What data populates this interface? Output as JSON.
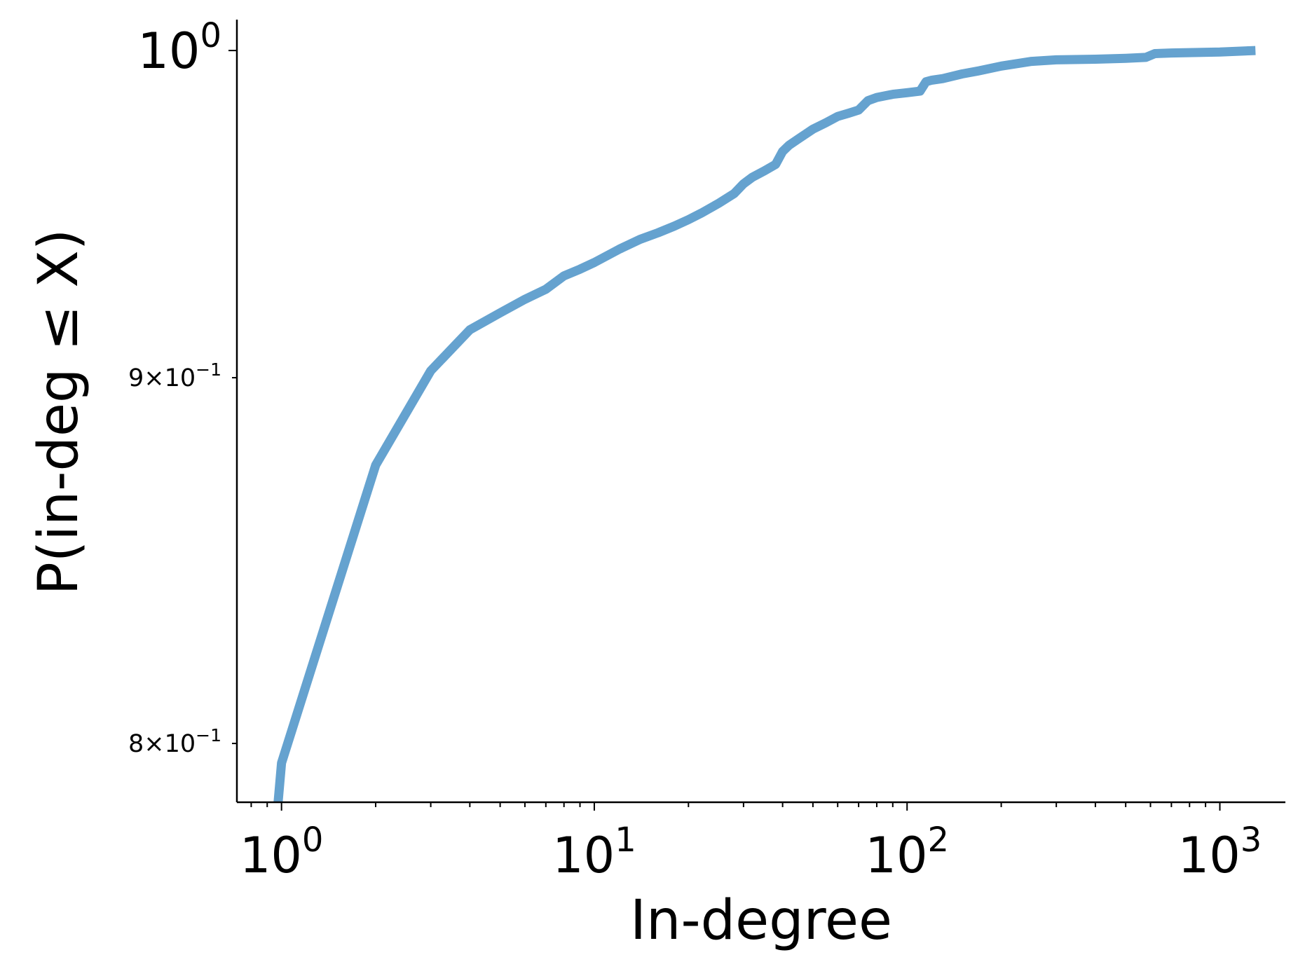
{
  "chart_data": {
    "type": "line",
    "xlabel": "In-degree",
    "ylabel": "P(in-deg ≤ X)",
    "xscale": "log",
    "yscale": "log",
    "xlim": [
      0.72,
      1620
    ],
    "ylim": [
      0.785,
      1.01
    ],
    "x_ticks": [
      {
        "value": 1,
        "base": "10",
        "exp": "0"
      },
      {
        "value": 10,
        "base": "10",
        "exp": "1"
      },
      {
        "value": 100,
        "base": "10",
        "exp": "2"
      },
      {
        "value": 1000,
        "base": "10",
        "exp": "3"
      }
    ],
    "y_ticks": [
      {
        "value": 0.8,
        "mantissa": "8",
        "base": "10",
        "exp": "−1",
        "style": "minor"
      },
      {
        "value": 0.9,
        "mantissa": "9",
        "base": "10",
        "exp": "−1",
        "style": "minor"
      },
      {
        "value": 1.0,
        "mantissa": "",
        "base": "10",
        "exp": "0",
        "style": "major"
      }
    ],
    "grid": false,
    "line_color": "#65a2cf",
    "series": [
      {
        "x": [
          0.97,
          1,
          2,
          3,
          4,
          5,
          6,
          7,
          8,
          9,
          10,
          12,
          14,
          16,
          18,
          20,
          22,
          25,
          28,
          30,
          32,
          35,
          38,
          40,
          42,
          45,
          50,
          55,
          60,
          65,
          70,
          75,
          80,
          90,
          100,
          110,
          115,
          120,
          130,
          150,
          170,
          200,
          250,
          300,
          400,
          500,
          580,
          620,
          700,
          1000,
          1300
        ],
        "y": [
          0.783,
          0.795,
          0.875,
          0.902,
          0.914,
          0.919,
          0.923,
          0.926,
          0.93,
          0.932,
          0.934,
          0.938,
          0.941,
          0.943,
          0.945,
          0.947,
          0.949,
          0.952,
          0.955,
          0.958,
          0.96,
          0.962,
          0.964,
          0.968,
          0.97,
          0.972,
          0.975,
          0.977,
          0.979,
          0.98,
          0.981,
          0.984,
          0.985,
          0.986,
          0.9865,
          0.987,
          0.99,
          0.9905,
          0.991,
          0.9925,
          0.9935,
          0.995,
          0.9965,
          0.997,
          0.9972,
          0.9975,
          0.9978,
          0.999,
          0.9992,
          0.9995,
          1.0
        ]
      }
    ]
  }
}
